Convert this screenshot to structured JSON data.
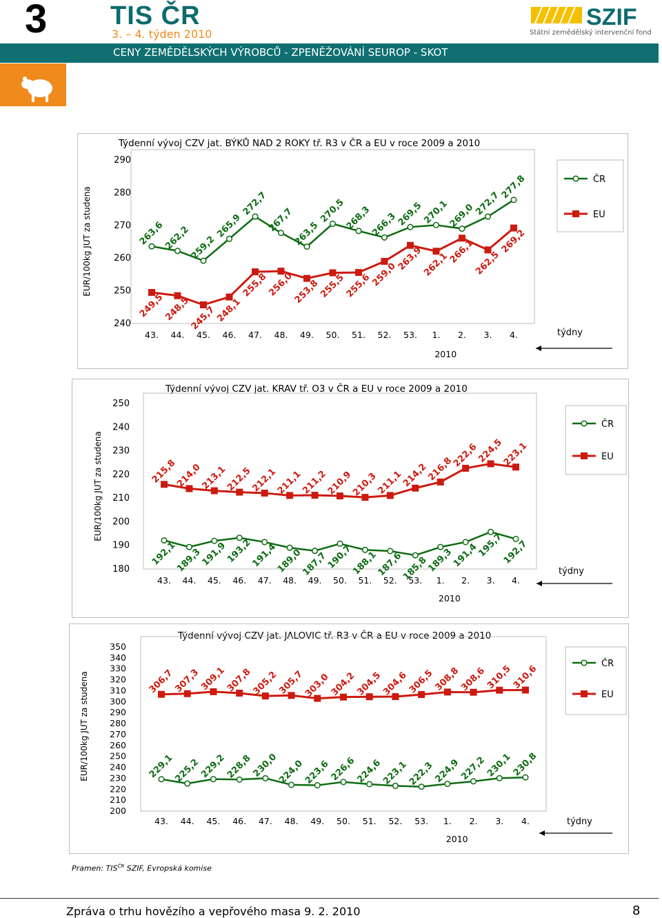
{
  "header": {
    "section_number": "3",
    "brand": "TIS ČR",
    "week": "3. – 4. týden 2010",
    "banner": "CENY ZEMĚDĚLSKÝCH VÝROBCŮ - ZPENĚŽOVÁNÍ SEUROP - SKOT",
    "logo_name": "SZIF",
    "logo_sub": "Státní zemědělský intervenční fond"
  },
  "colors": {
    "cr": "#0d6b12",
    "eu": "#cc1a10",
    "teal": "#0f6f71",
    "orange": "#f08a1c"
  },
  "chart_data": [
    {
      "type": "line",
      "title": "Týdenní vývoj CZV jat. BÝKŮ NAD 2 ROKY tř. R3  v ČR a EU v roce 2009 a 2010",
      "ylabel": "EUR/100kg  JUT za studena",
      "xlabel": "týdny",
      "year_label": "2010",
      "ylim": [
        240,
        290
      ],
      "yticks": [
        "240",
        "250",
        "260",
        "270",
        "280",
        "290"
      ],
      "categories": [
        "43.",
        "44.",
        "45.",
        "46.",
        "47.",
        "48.",
        "49.",
        "50.",
        "51.",
        "52.",
        "53.",
        "1.",
        "2.",
        "3.",
        "4."
      ],
      "series": [
        {
          "name": "ČR",
          "values": [
            263.6,
            262.2,
            259.2,
            265.9,
            272.7,
            267.7,
            263.5,
            270.5,
            268.3,
            266.3,
            269.5,
            270.1,
            269.0,
            272.7,
            277.8
          ],
          "labels": [
            "263,6",
            "262,2",
            "259,2",
            "265,9",
            "272,7",
            "267,7",
            "263,5",
            "270,5",
            "268,3",
            "266,3",
            "269,5",
            "270,1",
            "269,0",
            "272,7",
            "277,8"
          ]
        },
        {
          "name": "EU",
          "values": [
            249.5,
            248.5,
            245.7,
            248.1,
            255.8,
            256.0,
            253.8,
            255.5,
            255.6,
            259.0,
            263.9,
            262.1,
            266.1,
            262.5,
            269.2
          ],
          "labels": [
            "249,5",
            "248,5",
            "245,7",
            "248,1",
            "255,8",
            "256,0",
            "253,8",
            "255,5",
            "255,6",
            "259,0",
            "263,9",
            "262,1",
            "266,1",
            "262,5",
            "269,2"
          ]
        }
      ],
      "legend": [
        "ČR",
        "EU"
      ]
    },
    {
      "type": "line",
      "title": "Týdenní vývoj CZV jat. KRAV tř. O3  v ČR a EU v roce 2009 a 2010",
      "ylabel": "EUR/100kg  JUT za studena",
      "xlabel": "týdny",
      "year_label": "2010",
      "ylim": [
        180,
        250
      ],
      "yticks": [
        "180",
        "190",
        "200",
        "210",
        "220",
        "230",
        "240",
        "250"
      ],
      "categories": [
        "43.",
        "44.",
        "45.",
        "46.",
        "47.",
        "48.",
        "49.",
        "50.",
        "51.",
        "52.",
        "53.",
        "1.",
        "2.",
        "3.",
        "4."
      ],
      "series": [
        {
          "name": "ČR",
          "values": [
            192.1,
            189.3,
            191.9,
            193.2,
            191.4,
            189.0,
            187.7,
            190.7,
            188.1,
            187.6,
            185.8,
            189.3,
            191.4,
            195.7,
            192.7
          ],
          "labels": [
            "192,1",
            "189,3",
            "191,9",
            "193,2",
            "191,4",
            "189,0",
            "187,7",
            "190,7",
            "188,1",
            "187,6",
            "185,8",
            "189,3",
            "191,4",
            "195,7",
            "192,7"
          ]
        },
        {
          "name": "EU",
          "values": [
            215.8,
            214.0,
            213.1,
            212.5,
            212.1,
            211.1,
            211.2,
            210.9,
            210.3,
            211.1,
            214.2,
            216.8,
            222.6,
            224.5,
            223.1
          ],
          "labels": [
            "215,8",
            "214,0",
            "213,1",
            "212,5",
            "212,1",
            "211,1",
            "211,2",
            "210,9",
            "210,3",
            "211,1",
            "214,2",
            "216,8",
            "222,6",
            "224,5",
            "223,1"
          ]
        }
      ],
      "legend": [
        "ČR",
        "EU"
      ]
    },
    {
      "type": "line",
      "title": "Týdenní vývoj CZV jat. JALOVIC tř. R3  v ČR a EU v roce 2009 a 2010",
      "ylabel": "EUR/100kg  JUT za studena",
      "xlabel": "týdny",
      "year_label": "2010",
      "ylim": [
        200,
        350
      ],
      "yticks": [
        "200",
        "210",
        "220",
        "230",
        "240",
        "250",
        "260",
        "270",
        "280",
        "290",
        "300",
        "310",
        "320",
        "330",
        "340",
        "350"
      ],
      "categories": [
        "43.",
        "44.",
        "45.",
        "46.",
        "47.",
        "48.",
        "49.",
        "50.",
        "51.",
        "52.",
        "53.",
        "1.",
        "2.",
        "3.",
        "4."
      ],
      "series": [
        {
          "name": "ČR",
          "values": [
            229.1,
            225.2,
            229.2,
            228.8,
            230.0,
            224.0,
            223.6,
            226.6,
            224.6,
            223.1,
            222.3,
            224.9,
            227.2,
            230.1,
            230.8
          ],
          "labels": [
            "229,1",
            "225,2",
            "229,2",
            "228,8",
            "230,0",
            "224,0",
            "223,6",
            "226,6",
            "224,6",
            "223,1",
            "222,3",
            "224,9",
            "227,2",
            "230,1",
            "230,8"
          ]
        },
        {
          "name": "EU",
          "values": [
            306.7,
            307.3,
            309.1,
            307.8,
            305.2,
            305.7,
            303.0,
            304.2,
            304.5,
            304.6,
            306.5,
            308.8,
            308.6,
            310.5,
            310.6
          ],
          "labels": [
            "306,7",
            "307,3",
            "309,1",
            "307,8",
            "305,2",
            "305,7",
            "303,0",
            "304,2",
            "304,5",
            "304,6",
            "306,5",
            "308,8",
            "308,6",
            "310,5",
            "310,6"
          ]
        }
      ],
      "legend": [
        "ČR",
        "EU"
      ]
    }
  ],
  "source": "Pramen: TIS",
  "source_sup": "ČR",
  "source_rest": " SZIF, Evropská komise",
  "footer": {
    "text": "Zpráva o trhu hovězího a vepřového masa  9. 2. 2010",
    "page": "8"
  }
}
